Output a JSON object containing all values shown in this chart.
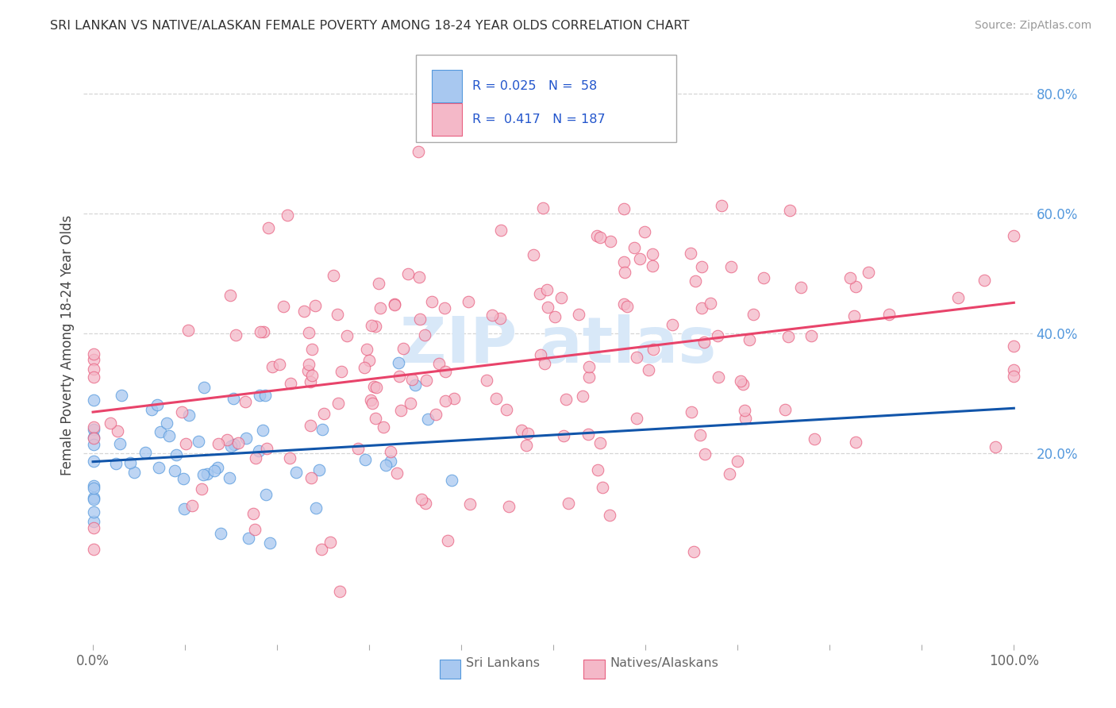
{
  "title": "SRI LANKAN VS NATIVE/ALASKAN FEMALE POVERTY AMONG 18-24 YEAR OLDS CORRELATION CHART",
  "source": "Source: ZipAtlas.com",
  "ylabel": "Female Poverty Among 18-24 Year Olds",
  "xlim": [
    -0.01,
    1.02
  ],
  "ylim": [
    -0.12,
    0.88
  ],
  "xticks": [
    0.0,
    0.1,
    0.2,
    0.3,
    0.4,
    0.5,
    0.6,
    0.7,
    0.8,
    0.9,
    1.0
  ],
  "xticklabels_show": {
    "0.0": "0.0%",
    "1.0": "100.0%"
  },
  "ytick_positions": [
    0.2,
    0.4,
    0.6,
    0.8
  ],
  "ytick_labels": [
    "20.0%",
    "40.0%",
    "60.0%",
    "80.0%"
  ],
  "sri_R": 0.025,
  "sri_N": 58,
  "native_R": 0.417,
  "native_N": 187,
  "sri_color": "#a8c8f0",
  "native_color": "#f4b8c8",
  "sri_edge_color": "#5599dd",
  "native_edge_color": "#e86080",
  "sri_line_color": "#1155aa",
  "native_line_color": "#e8436a",
  "legend_text_color": "#2255cc",
  "background_color": "#ffffff",
  "grid_color": "#cccccc",
  "watermark_color": "#d8e8f8",
  "title_color": "#333333",
  "ylabel_color": "#444444",
  "xtick_color": "#666666",
  "ytick_color": "#5599dd"
}
